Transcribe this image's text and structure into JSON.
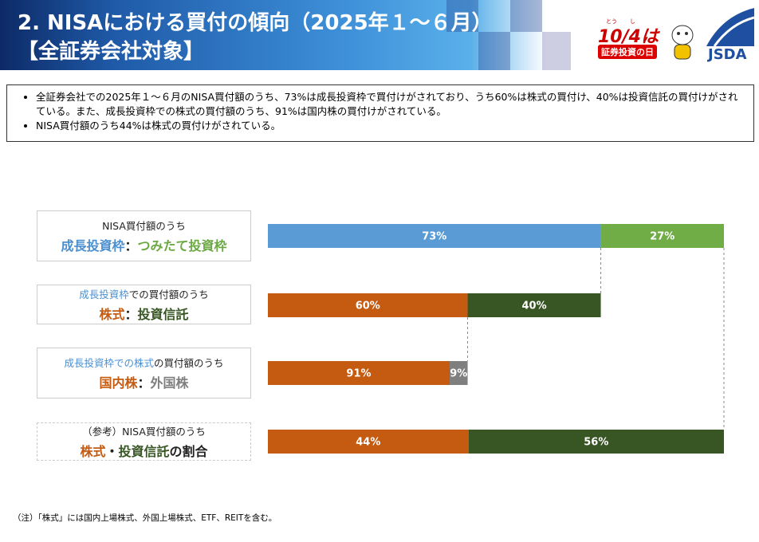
{
  "header": {
    "title_line1": "2. NISAにおける買付の傾向（2025年１～６月）",
    "title_line2": "【全証券会社対象】",
    "logo_ruby": [
      "とう",
      "し"
    ],
    "logo_main": "10/4は",
    "logo_sub": "証券投資の日",
    "logo_org": "JSDA"
  },
  "bullets": [
    "全証券会社での2025年１～６月のNISA買付額のうち、73%は成長投資枠で買付けがされており、うち60%は株式の買付け、40%は投資信託の買付けがされている。また、成長投資枠での株式の買付額のうち、91%は国内株の買付けがされている。",
    "NISA買付額のうち44%は株式の買付けがされている。"
  ],
  "rows": [
    {
      "label_lines": [
        [
          {
            "text": "NISA買付額のうち",
            "color": "#222222"
          }
        ],
        [
          {
            "text": "成長投資枠",
            "color": "#4a8fd0"
          },
          {
            "text": "：",
            "color": "#222222"
          },
          {
            "text": "つみたて投資枠",
            "color": "#6aa842"
          }
        ]
      ],
      "values": [
        73,
        27
      ],
      "value_labels": [
        "73%",
        "27%"
      ],
      "colors": [
        "#5b9bd5",
        "#70ad47"
      ]
    },
    {
      "label_lines": [
        [
          {
            "text": "成長投資枠",
            "color": "#4a8fd0"
          },
          {
            "text": "での買付額のうち",
            "color": "#222222"
          }
        ],
        [
          {
            "text": "株式",
            "color": "#c55a11"
          },
          {
            "text": "：",
            "color": "#222222"
          },
          {
            "text": "投資信託",
            "color": "#375623"
          }
        ]
      ],
      "values": [
        60,
        40
      ],
      "value_labels": [
        "60%",
        "40%"
      ],
      "colors": [
        "#c55a11",
        "#375623"
      ]
    },
    {
      "label_lines": [
        [
          {
            "text": "成長投資枠での株式",
            "color": "#4a8fd0"
          },
          {
            "text": "の買付額のうち",
            "color": "#222222"
          }
        ],
        [
          {
            "text": "国内株",
            "color": "#c55a11"
          },
          {
            "text": "：",
            "color": "#222222"
          },
          {
            "text": "外国株",
            "color": "#7f7f7f"
          }
        ]
      ],
      "values": [
        91,
        9
      ],
      "value_labels": [
        "91%",
        "9%"
      ],
      "colors": [
        "#c55a11",
        "#7f7f7f"
      ]
    },
    {
      "label_lines": [
        [
          {
            "text": "（参考）NISA買付額のうち",
            "color": "#222222"
          }
        ],
        [
          {
            "text": "株式",
            "color": "#c55a11"
          },
          {
            "text": "・",
            "color": "#222222"
          },
          {
            "text": "投資信託",
            "color": "#375623"
          },
          {
            "text": "の割合",
            "color": "#222222"
          }
        ]
      ],
      "values": [
        44,
        56
      ],
      "value_labels": [
        "44%",
        "56%"
      ],
      "colors": [
        "#c55a11",
        "#375623"
      ]
    }
  ],
  "note": "（注）「株式」には国内上場株式、外国上場株式、ETF、REITを含む。"
}
